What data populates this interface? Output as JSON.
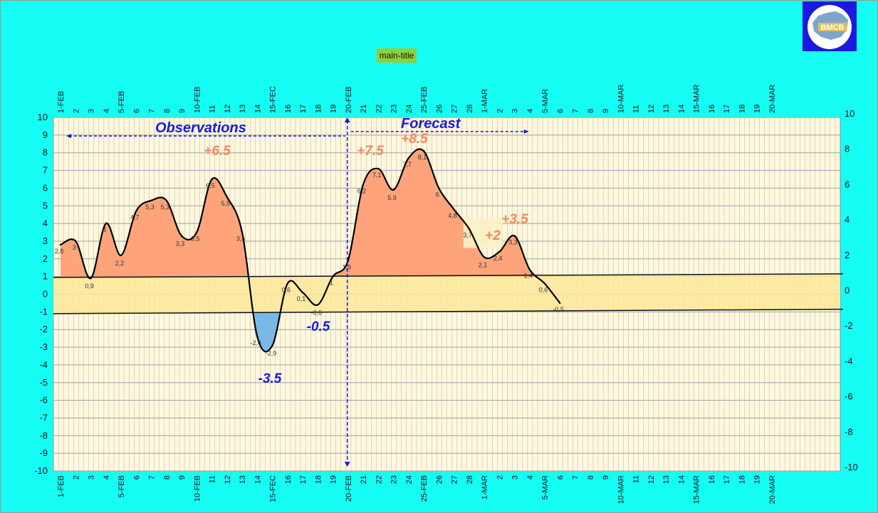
{
  "title": "main-title",
  "logo": {
    "text": "BMCB"
  },
  "annotations": {
    "observations": "Observations",
    "forecast": "Forecast",
    "peak1": "+6.5",
    "peak2": "+7.5",
    "peak3": "+8.5",
    "peak4": "+3.5",
    "peak5": "+2",
    "min1": "-3.5",
    "min2": "-0.5"
  },
  "colors": {
    "background": "#16fdf4",
    "plot_area": "#fff8dc",
    "grid": "#b4b4b4",
    "positive_fill": "#ffa47a",
    "negative_fill": "#7ab8e8",
    "normal_band": "#fde99a",
    "line": "#000000",
    "annotation_blue": "#1a1adf",
    "annotation_orange": "#f08a5d"
  },
  "chart_data": {
    "type": "line",
    "title": "main-title",
    "xlabel": "",
    "ylabel": "",
    "ylim": [
      -10,
      10
    ],
    "yticks": [
      "10",
      "9",
      "8",
      "7",
      "6",
      "5",
      "4",
      "3",
      "2",
      "1",
      "0",
      "-1",
      "-2",
      "-3",
      "-4",
      "-5",
      "-6",
      "-7",
      "-8",
      "-9",
      "-10"
    ],
    "right_yticks": [
      "10",
      "8",
      "6",
      "4",
      "2",
      "0",
      "-2",
      "-4",
      "-6",
      "-8",
      "-10"
    ],
    "x_tick_labels": [
      "1-FEB",
      "2",
      "3",
      "4",
      "5-FEB",
      "6",
      "7",
      "8",
      "9",
      "10-FEB",
      "11",
      "12",
      "13",
      "14",
      "15-FEC",
      "16",
      "17",
      "18",
      "19",
      "20-FEB",
      "21",
      "22",
      "23",
      "24",
      "25-FEB",
      "26",
      "27",
      "28",
      "1-MAR",
      "2",
      "3",
      "4",
      "5-MAR",
      "6",
      "7",
      "8",
      "9",
      "10-MAR",
      "11",
      "12",
      "13",
      "14",
      "15-MAR",
      "16",
      "17",
      "18",
      "19",
      "20-MAR"
    ],
    "grid": true,
    "series": [
      {
        "x": [
          "1-FEB",
          "2",
          "3",
          "4",
          "5-FEB",
          "6",
          "7",
          "8",
          "9",
          "10-FEB",
          "11",
          "12",
          "13",
          "14",
          "15-FEC",
          "16",
          "17",
          "18",
          "19",
          "20-FEB",
          "21",
          "22",
          "23",
          "24",
          "25-FEB",
          "26",
          "27",
          "28",
          "1-MAR",
          "2",
          "3",
          "4",
          "5-MAR",
          "6"
        ],
        "values": [
          2.8,
          3,
          0.9,
          4,
          2.2,
          4.7,
          5.3,
          5.3,
          3.3,
          3.5,
          6.5,
          5.5,
          3.5,
          -2.4,
          -2.9,
          0.6,
          0.1,
          -0.6,
          1,
          1.9,
          6.2,
          7.1,
          5.9,
          7.7,
          8.1,
          6,
          4.8,
          3.7,
          2.1,
          2.4,
          3.3,
          1.4,
          0.6,
          -0.5
        ],
        "labels": [
          "2,8",
          "3",
          "0,9",
          "4",
          "2,2",
          "4,7",
          "5,3",
          "5,3",
          "3,3",
          "3,5",
          "6,5",
          "5,5",
          "3,5",
          "-2,4",
          "-2,9",
          "0,6",
          "0,1",
          "-0,6",
          "1",
          "1,9",
          "6,2",
          "7,1",
          "5,9",
          "7,7",
          "8,1",
          "6",
          "4,8",
          "3,7",
          "2,1",
          "2,4",
          "3,3",
          "1,4",
          "0,6",
          "-0,5"
        ]
      }
    ],
    "normal_band": [
      -1,
      1
    ]
  }
}
